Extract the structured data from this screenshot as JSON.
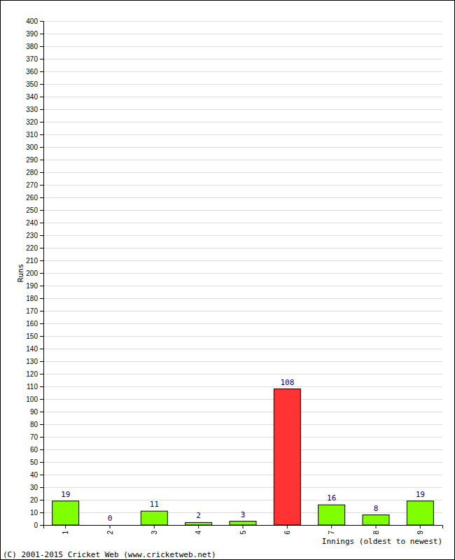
{
  "chart_data": {
    "type": "bar",
    "categories": [
      "1",
      "2",
      "3",
      "4",
      "5",
      "6",
      "7",
      "8",
      "9"
    ],
    "values": [
      19,
      0,
      11,
      2,
      3,
      108,
      16,
      8,
      19
    ],
    "colors": [
      "#80ff00",
      "#80ff00",
      "#80ff00",
      "#80ff00",
      "#80ff00",
      "#ff3333",
      "#80ff00",
      "#80ff00",
      "#80ff00"
    ],
    "ylim": [
      0,
      400
    ],
    "yticks": [
      0,
      10,
      20,
      30,
      40,
      50,
      60,
      70,
      80,
      90,
      100,
      110,
      120,
      130,
      140,
      150,
      160,
      170,
      180,
      190,
      200,
      210,
      220,
      230,
      240,
      250,
      260,
      270,
      280,
      290,
      300,
      310,
      320,
      330,
      340,
      350,
      360,
      370,
      380,
      390,
      400
    ],
    "grid": true,
    "data_labels": true,
    "x_label": "Innings (oldest to newest)",
    "y_label": "Runs",
    "annotations": [
      "(C) 2001-2015 Cricket Web (www.cricketweb.net)"
    ]
  }
}
